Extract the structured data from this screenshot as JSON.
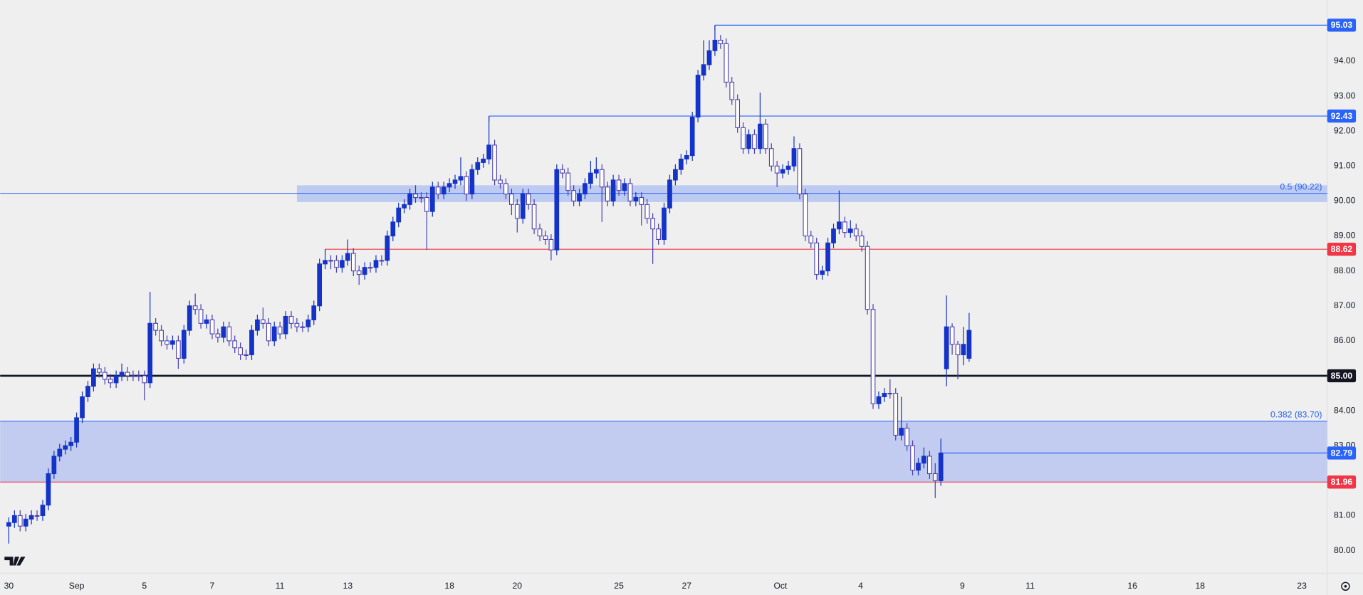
{
  "chart_data": {
    "type": "candlestick",
    "xlim": [
      -1.54,
      233.4
    ],
    "ylim": [
      79.35,
      95.75
    ],
    "xticks": [
      {
        "value": 0,
        "label": "30"
      },
      {
        "value": 12,
        "label": "Sep"
      },
      {
        "value": 24,
        "label": "5"
      },
      {
        "value": 36,
        "label": "7"
      },
      {
        "value": 48,
        "label": "11"
      },
      {
        "value": 60,
        "label": "13"
      },
      {
        "value": 78,
        "label": "18"
      },
      {
        "value": 90,
        "label": "20"
      },
      {
        "value": 108,
        "label": "25"
      },
      {
        "value": 120,
        "label": "27"
      },
      {
        "value": 136.6,
        "label": "Oct"
      },
      {
        "value": 150.8,
        "label": "4"
      },
      {
        "value": 168.8,
        "label": "9"
      },
      {
        "value": 180.8,
        "label": "11"
      },
      {
        "value": 198.9,
        "label": "16"
      },
      {
        "value": 210.9,
        "label": "18"
      },
      {
        "value": 228.9,
        "label": "23"
      }
    ],
    "yticks": [
      {
        "value": 80,
        "label": "80.00"
      },
      {
        "value": 81,
        "label": "81.00"
      },
      {
        "value": 83,
        "label": "83.00"
      },
      {
        "value": 84,
        "label": "84.00"
      },
      {
        "value": 86,
        "label": "86.00"
      },
      {
        "value": 87,
        "label": "87.00"
      },
      {
        "value": 88,
        "label": "88.00"
      },
      {
        "value": 89,
        "label": "89.00"
      },
      {
        "value": 90,
        "label": "90.00"
      },
      {
        "value": 91,
        "label": "91.00"
      },
      {
        "value": 92,
        "label": "92.00"
      },
      {
        "value": 93,
        "label": "93.00"
      },
      {
        "value": 94,
        "label": "94.00"
      }
    ],
    "up_color": "#1433c9",
    "down_color": "#4b3fb0",
    "x": [
      0,
      1,
      2,
      3,
      4,
      5,
      6,
      7,
      8,
      9,
      10,
      11,
      12,
      13,
      14,
      15,
      16,
      17,
      18,
      19,
      20,
      21,
      22,
      23,
      24,
      25,
      26,
      27,
      28,
      29,
      30,
      31,
      32,
      33,
      34,
      35,
      36,
      37,
      38,
      39,
      40,
      41,
      42,
      43,
      44,
      45,
      46,
      47,
      48,
      49,
      50,
      51,
      52,
      53,
      54,
      55,
      56,
      57,
      58,
      59,
      60,
      61,
      62,
      63,
      64,
      65,
      66,
      67,
      68,
      69,
      70,
      71,
      72,
      73,
      74,
      75,
      76,
      77,
      78,
      79,
      80,
      81,
      82,
      83,
      84,
      85,
      86,
      87,
      88,
      89,
      90,
      91,
      92,
      93,
      94,
      95,
      96,
      97,
      98,
      99,
      100,
      101,
      102,
      103,
      104,
      105,
      106,
      107,
      108,
      109,
      110,
      111,
      112,
      113,
      114,
      115,
      116,
      117,
      118,
      119,
      120,
      121,
      122,
      123,
      124,
      125,
      126,
      127,
      128,
      129,
      130,
      131,
      132,
      133,
      134,
      135,
      136,
      137,
      138,
      139,
      140,
      141,
      142,
      143,
      144,
      145,
      146,
      147,
      148,
      149,
      150,
      151,
      152,
      153,
      154,
      155,
      156,
      157,
      158,
      159,
      160,
      161,
      162,
      163,
      164,
      165,
      166,
      167,
      168,
      169,
      170
    ],
    "ohlc": [
      [
        80.7,
        80.95,
        80.2,
        80.8
      ],
      [
        80.8,
        81.15,
        80.65,
        81.0
      ],
      [
        81.0,
        81.15,
        80.55,
        80.7
      ],
      [
        80.7,
        81.05,
        80.55,
        80.9
      ],
      [
        80.9,
        81.15,
        80.75,
        81.0
      ],
      [
        81.0,
        81.15,
        80.85,
        81.0
      ],
      [
        81.0,
        81.45,
        80.85,
        81.3
      ],
      [
        81.3,
        82.35,
        81.15,
        82.2
      ],
      [
        82.2,
        82.85,
        82.05,
        82.7
      ],
      [
        82.7,
        83.05,
        82.55,
        82.9
      ],
      [
        82.9,
        83.15,
        82.75,
        83.0
      ],
      [
        83.0,
        83.25,
        82.85,
        83.1
      ],
      [
        83.1,
        83.95,
        82.95,
        83.8
      ],
      [
        83.8,
        84.55,
        83.65,
        84.4
      ],
      [
        84.4,
        84.85,
        84.25,
        84.7
      ],
      [
        84.7,
        85.35,
        84.55,
        85.2
      ],
      [
        85.2,
        85.35,
        84.95,
        85.1
      ],
      [
        85.1,
        85.25,
        84.75,
        84.9
      ],
      [
        84.9,
        85.05,
        84.65,
        84.8
      ],
      [
        84.8,
        85.15,
        84.65,
        85.0
      ],
      [
        85.0,
        85.35,
        84.85,
        85.1
      ],
      [
        85.1,
        85.25,
        84.85,
        85.0
      ],
      [
        85.0,
        85.15,
        84.85,
        85.0
      ],
      [
        85.0,
        85.15,
        84.85,
        85.0
      ],
      [
        85.0,
        85.15,
        84.3,
        84.8
      ],
      [
        84.8,
        87.4,
        84.65,
        86.5
      ],
      [
        86.5,
        86.65,
        86.15,
        86.3
      ],
      [
        86.3,
        86.45,
        85.85,
        86.0
      ],
      [
        86.0,
        86.15,
        85.75,
        85.9
      ],
      [
        85.9,
        86.15,
        85.75,
        86.0
      ],
      [
        86.0,
        86.15,
        85.2,
        85.5
      ],
      [
        85.5,
        86.45,
        85.35,
        86.3
      ],
      [
        86.3,
        87.15,
        86.15,
        87.0
      ],
      [
        87.0,
        87.35,
        86.75,
        86.9
      ],
      [
        86.9,
        87.05,
        86.35,
        86.5
      ],
      [
        86.5,
        86.75,
        86.35,
        86.6
      ],
      [
        86.6,
        86.75,
        86.05,
        86.2
      ],
      [
        86.2,
        86.35,
        85.95,
        86.1
      ],
      [
        86.1,
        86.55,
        85.95,
        86.4
      ],
      [
        86.4,
        86.55,
        85.85,
        86.0
      ],
      [
        86.0,
        86.15,
        85.65,
        85.8
      ],
      [
        85.8,
        85.95,
        85.45,
        85.6
      ],
      [
        85.6,
        85.75,
        85.45,
        85.6
      ],
      [
        85.6,
        86.45,
        85.45,
        86.3
      ],
      [
        86.3,
        86.75,
        86.15,
        86.6
      ],
      [
        86.6,
        86.95,
        86.35,
        86.5
      ],
      [
        86.5,
        86.65,
        85.85,
        86.0
      ],
      [
        86.0,
        86.55,
        85.85,
        86.4
      ],
      [
        86.4,
        86.55,
        86.05,
        86.2
      ],
      [
        86.2,
        86.85,
        86.05,
        86.7
      ],
      [
        86.7,
        86.85,
        86.35,
        86.5
      ],
      [
        86.5,
        86.65,
        86.25,
        86.4
      ],
      [
        86.4,
        86.55,
        86.25,
        86.4
      ],
      [
        86.4,
        86.75,
        86.25,
        86.6
      ],
      [
        86.6,
        87.15,
        86.45,
        87.0
      ],
      [
        87.0,
        88.35,
        86.85,
        88.2
      ],
      [
        88.2,
        88.62,
        88.05,
        88.3
      ],
      [
        88.3,
        88.45,
        88.05,
        88.3
      ],
      [
        88.3,
        88.45,
        87.95,
        88.1
      ],
      [
        88.1,
        88.45,
        87.95,
        88.3
      ],
      [
        88.3,
        88.9,
        88.15,
        88.5
      ],
      [
        88.5,
        88.65,
        87.85,
        88.0
      ],
      [
        88.0,
        88.15,
        87.6,
        87.9
      ],
      [
        87.9,
        88.25,
        87.75,
        88.1
      ],
      [
        88.1,
        88.25,
        87.95,
        88.1
      ],
      [
        88.1,
        88.45,
        87.95,
        88.3
      ],
      [
        88.3,
        88.45,
        88.15,
        88.3
      ],
      [
        88.3,
        89.15,
        88.15,
        89.0
      ],
      [
        89.0,
        89.55,
        88.85,
        89.4
      ],
      [
        89.4,
        89.95,
        89.25,
        89.8
      ],
      [
        89.8,
        90.05,
        89.65,
        89.9
      ],
      [
        89.9,
        90.35,
        89.75,
        90.2
      ],
      [
        90.2,
        90.45,
        89.95,
        90.1
      ],
      [
        90.1,
        90.25,
        89.95,
        90.1
      ],
      [
        90.1,
        90.25,
        88.6,
        89.7
      ],
      [
        89.7,
        90.55,
        89.55,
        90.4
      ],
      [
        90.4,
        90.55,
        90.05,
        90.2
      ],
      [
        90.2,
        90.55,
        90.05,
        90.4
      ],
      [
        90.4,
        90.65,
        90.25,
        90.5
      ],
      [
        90.5,
        90.75,
        90.35,
        90.6
      ],
      [
        90.6,
        91.25,
        90.45,
        90.7
      ],
      [
        90.7,
        90.85,
        90.0,
        90.2
      ],
      [
        90.2,
        91.05,
        90.05,
        90.9
      ],
      [
        90.9,
        91.25,
        90.75,
        91.1
      ],
      [
        91.1,
        91.35,
        90.95,
        91.2
      ],
      [
        91.2,
        92.43,
        91.05,
        91.6
      ],
      [
        91.6,
        91.75,
        90.45,
        90.6
      ],
      [
        90.6,
        90.75,
        90.35,
        90.5
      ],
      [
        90.5,
        90.65,
        90.05,
        90.2
      ],
      [
        90.2,
        90.35,
        89.6,
        89.9
      ],
      [
        89.9,
        90.05,
        89.1,
        89.5
      ],
      [
        89.5,
        90.35,
        89.35,
        90.2
      ],
      [
        90.2,
        90.35,
        89.75,
        89.9
      ],
      [
        89.9,
        90.05,
        89.05,
        89.2
      ],
      [
        89.2,
        89.35,
        88.85,
        89.0
      ],
      [
        89.0,
        89.15,
        88.75,
        88.9
      ],
      [
        88.9,
        89.05,
        88.3,
        88.6
      ],
      [
        88.6,
        91.05,
        88.45,
        90.9
      ],
      [
        90.9,
        91.05,
        90.65,
        90.8
      ],
      [
        90.8,
        90.95,
        90.15,
        90.3
      ],
      [
        90.3,
        90.45,
        89.85,
        90.0
      ],
      [
        90.0,
        90.35,
        89.85,
        90.2
      ],
      [
        90.2,
        90.65,
        90.05,
        90.5
      ],
      [
        90.5,
        91.15,
        90.35,
        90.8
      ],
      [
        90.8,
        91.25,
        90.65,
        90.9
      ],
      [
        90.9,
        91.05,
        89.4,
        90.4
      ],
      [
        90.4,
        90.55,
        89.85,
        90.0
      ],
      [
        90.0,
        90.75,
        89.85,
        90.6
      ],
      [
        90.6,
        90.75,
        90.15,
        90.3
      ],
      [
        90.3,
        90.65,
        90.15,
        90.5
      ],
      [
        90.5,
        90.65,
        89.85,
        90.0
      ],
      [
        90.0,
        90.25,
        89.85,
        90.1
      ],
      [
        90.1,
        90.25,
        89.3,
        89.9
      ],
      [
        89.9,
        90.05,
        89.35,
        89.5
      ],
      [
        89.5,
        89.65,
        88.2,
        89.2
      ],
      [
        89.2,
        89.35,
        88.75,
        88.9
      ],
      [
        88.9,
        89.95,
        88.75,
        89.8
      ],
      [
        89.8,
        90.75,
        89.65,
        90.6
      ],
      [
        90.6,
        91.05,
        90.45,
        90.9
      ],
      [
        90.9,
        91.35,
        90.75,
        91.2
      ],
      [
        91.2,
        91.45,
        91.05,
        91.3
      ],
      [
        91.3,
        92.55,
        91.15,
        92.4
      ],
      [
        92.4,
        93.75,
        92.25,
        93.6
      ],
      [
        93.6,
        94.6,
        93.45,
        93.9
      ],
      [
        93.9,
        94.6,
        93.75,
        94.3
      ],
      [
        94.3,
        95.03,
        94.15,
        94.6
      ],
      [
        94.6,
        94.75,
        94.35,
        94.5
      ],
      [
        94.5,
        94.65,
        93.25,
        93.4
      ],
      [
        93.4,
        93.55,
        92.75,
        92.9
      ],
      [
        92.9,
        93.05,
        91.95,
        92.1
      ],
      [
        92.1,
        92.25,
        91.35,
        91.5
      ],
      [
        91.5,
        92.05,
        91.35,
        91.9
      ],
      [
        91.9,
        92.05,
        91.35,
        91.5
      ],
      [
        91.5,
        93.1,
        91.35,
        92.2
      ],
      [
        92.2,
        92.35,
        91.35,
        91.5
      ],
      [
        91.5,
        91.65,
        90.85,
        91.0
      ],
      [
        91.0,
        91.15,
        90.4,
        90.8
      ],
      [
        90.8,
        91.05,
        90.65,
        90.9
      ],
      [
        90.9,
        91.15,
        90.75,
        91.0
      ],
      [
        91.0,
        91.85,
        90.85,
        91.5
      ],
      [
        91.5,
        91.65,
        90.05,
        90.2
      ],
      [
        90.2,
        90.35,
        88.85,
        89.0
      ],
      [
        89.0,
        89.15,
        88.65,
        88.8
      ],
      [
        88.8,
        88.95,
        87.75,
        87.9
      ],
      [
        87.9,
        88.15,
        87.75,
        88.0
      ],
      [
        88.0,
        88.95,
        87.85,
        88.8
      ],
      [
        88.8,
        89.35,
        88.65,
        89.2
      ],
      [
        89.2,
        90.3,
        89.05,
        89.4
      ],
      [
        89.4,
        89.55,
        88.95,
        89.1
      ],
      [
        89.1,
        89.45,
        88.95,
        89.2
      ],
      [
        89.2,
        89.35,
        88.85,
        89.0
      ],
      [
        89.0,
        89.15,
        88.55,
        88.7
      ],
      [
        88.7,
        88.85,
        86.75,
        86.9
      ],
      [
        86.9,
        87.05,
        84.05,
        84.2
      ],
      [
        84.2,
        84.55,
        84.05,
        84.4
      ],
      [
        84.4,
        84.65,
        84.25,
        84.5
      ],
      [
        84.5,
        84.9,
        84.35,
        84.5
      ],
      [
        84.5,
        84.65,
        83.15,
        83.3
      ],
      [
        83.3,
        84.4,
        83.15,
        83.5
      ],
      [
        83.5,
        83.65,
        82.85,
        83.0
      ],
      [
        83.0,
        83.15,
        82.15,
        82.3
      ],
      [
        82.3,
        82.65,
        82.15,
        82.5
      ],
      [
        82.5,
        82.95,
        82.35,
        82.7
      ],
      [
        82.7,
        82.85,
        82.05,
        82.2
      ],
      [
        82.2,
        82.5,
        81.5,
        82.0
      ],
      [
        82.0,
        83.2,
        81.85,
        82.79
      ],
      [
        85.2,
        87.3,
        84.7,
        86.4
      ],
      [
        86.4,
        86.5,
        85.6,
        85.9
      ],
      [
        85.9,
        86.0,
        84.9,
        85.6
      ],
      [
        85.6,
        86.4,
        85.3,
        85.9
      ],
      [
        85.5,
        86.8,
        85.4,
        86.3
      ]
    ],
    "zones": [
      {
        "low": 89.97,
        "high": 90.45,
        "level": 90.22,
        "label": "0.5 (90.22)",
        "from": 51,
        "color": "#b4c4f2"
      },
      {
        "low": 81.96,
        "high": 83.7,
        "level": 83.7,
        "label": "0.382 (83.70)",
        "color": "#b9c6f0"
      }
    ],
    "levels": [
      {
        "value": 95.03,
        "label": "95.03",
        "color": "#2962ff",
        "from": 125
      },
      {
        "value": 92.43,
        "label": "92.43",
        "color": "#2962ff",
        "from": 85
      },
      {
        "value": 88.62,
        "label": "88.62",
        "color": "#f23645",
        "from": 56
      },
      {
        "value": 85.0,
        "label": "85.00",
        "color": "#131722",
        "width": 2.2
      },
      {
        "value": 82.79,
        "label": "82.79",
        "color": "#2962ff",
        "from": 165
      },
      {
        "value": 81.96,
        "label": "81.96",
        "color": "#f23645"
      }
    ]
  }
}
